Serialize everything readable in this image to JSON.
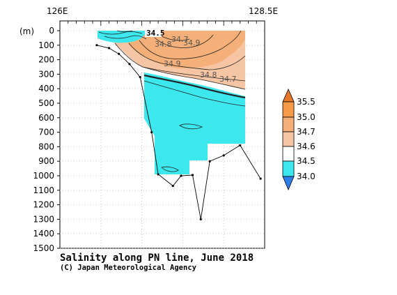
{
  "colors": {
    "lt_34_0": "#2f7fe6",
    "c_34_0_34_5": "#3ce8ee",
    "c_34_5_34_6": "#ffffff",
    "c_34_6_34_7": "#f6c6a4",
    "c_34_7_35_0": "#f4b078",
    "c_35_0_35_5": "#f49a48",
    "gt_35_5": "#e6782a",
    "contour": "#222222",
    "grid": "#bbbbbb",
    "bottom_profile": "#000000"
  },
  "chart_data": {
    "type": "section",
    "title": "Salinity along PN line, June 2018",
    "credit": "(C) Japan Meteorological Agency",
    "xlabel": "",
    "ylabel": "(m)",
    "x_axis": {
      "range": [
        "126E",
        "128.5E"
      ],
      "tick_labels": [
        "126E",
        "128.5E"
      ]
    },
    "y_axis": {
      "range": [
        0,
        1500
      ],
      "inverted": true,
      "ticks": [
        0,
        100,
        200,
        300,
        400,
        500,
        600,
        700,
        800,
        900,
        1000,
        1100,
        1200,
        1300,
        1400,
        1500
      ]
    },
    "grid": true,
    "colorbar": {
      "levels": [
        "35.5",
        "35.0",
        "34.7",
        "34.6",
        "34.5",
        "34.0"
      ],
      "placement": "right"
    },
    "contour_labels": [
      "34.5",
      "34.7",
      "34.8",
      "34.9",
      "34.9",
      "34.8",
      "34.7"
    ],
    "station_longitudes": [
      126.45,
      126.6,
      126.72,
      126.85,
      126.98,
      127.12,
      127.2,
      127.38,
      127.48,
      127.62,
      127.72,
      127.83,
      128.0,
      128.2,
      128.45
    ],
    "bottom_depths": [
      100,
      120,
      160,
      230,
      320,
      700,
      990,
      1070,
      1000,
      995,
      1300,
      900,
      860,
      790,
      1020
    ]
  }
}
